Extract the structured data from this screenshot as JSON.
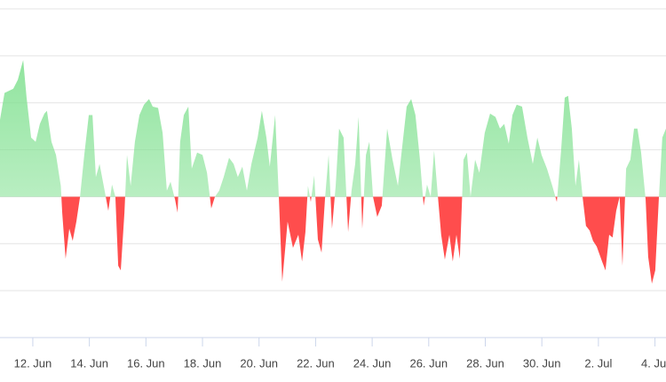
{
  "chart_data": {
    "type": "area",
    "positive_color": "#7fe08f",
    "negative_color": "#ff4d4d",
    "xlim": [
      10.84,
      34.39
    ],
    "ylim": [
      -30,
      41.9
    ],
    "xticks": [
      {
        "value": 12,
        "label": "12. Jun"
      },
      {
        "value": 14,
        "label": "14. Jun"
      },
      {
        "value": 16,
        "label": "16. Jun"
      },
      {
        "value": 18,
        "label": "18. Jun"
      },
      {
        "value": 20,
        "label": "20. Jun"
      },
      {
        "value": 22,
        "label": "22. Jun"
      },
      {
        "value": 24,
        "label": "24. Jun"
      },
      {
        "value": 26,
        "label": "26. Jun"
      },
      {
        "value": 28,
        "label": "28. Jun"
      },
      {
        "value": 30,
        "label": "30. Jun"
      },
      {
        "value": 32,
        "label": "2. Jul"
      },
      {
        "value": 34,
        "label": "4. Jul"
      }
    ],
    "yticks": [
      -20,
      -10,
      0,
      10,
      20,
      30,
      40
    ],
    "grid": true,
    "x": [
      10.84,
      11.0,
      11.31,
      11.47,
      11.66,
      11.78,
      11.94,
      12.1,
      12.25,
      12.41,
      12.5,
      12.66,
      12.82,
      12.99,
      13.04,
      13.16,
      13.29,
      13.41,
      13.54,
      13.67,
      13.82,
      13.98,
      14.11,
      14.23,
      14.36,
      14.54,
      14.67,
      14.8,
      14.92,
      15.02,
      15.11,
      15.24,
      15.33,
      15.46,
      15.61,
      15.77,
      15.93,
      16.11,
      16.24,
      16.43,
      16.59,
      16.74,
      16.87,
      17.03,
      17.12,
      17.21,
      17.34,
      17.5,
      17.62,
      17.81,
      18.0,
      18.16,
      18.31,
      18.44,
      18.59,
      18.75,
      18.94,
      19.1,
      19.25,
      19.41,
      19.57,
      19.73,
      19.95,
      20.1,
      20.26,
      20.38,
      20.57,
      20.7,
      20.82,
      21.01,
      21.2,
      21.39,
      21.52,
      21.64,
      21.73,
      21.83,
      21.95,
      22.08,
      22.21,
      22.33,
      22.46,
      22.58,
      22.71,
      22.83,
      22.99,
      23.15,
      23.27,
      23.4,
      23.52,
      23.65,
      23.78,
      23.9,
      24.03,
      24.18,
      24.34,
      24.53,
      24.72,
      24.91,
      25.03,
      25.22,
      25.38,
      25.53,
      25.69,
      25.82,
      25.94,
      26.07,
      26.19,
      26.32,
      26.44,
      26.57,
      26.73,
      26.85,
      26.98,
      27.1,
      27.23,
      27.35,
      27.48,
      27.64,
      27.79,
      27.98,
      28.17,
      28.36,
      28.52,
      28.67,
      28.83,
      28.96,
      29.11,
      29.3,
      29.49,
      29.68,
      29.84,
      29.99,
      30.18,
      30.37,
      30.53,
      30.68,
      30.81,
      30.93,
      31.06,
      31.19,
      31.31,
      31.44,
      31.56,
      31.69,
      31.81,
      31.94,
      32.13,
      32.25,
      32.38,
      32.5,
      32.63,
      32.75,
      32.85,
      32.98,
      33.13,
      33.26,
      33.38,
      33.51,
      33.67,
      33.76,
      33.89,
      34.01,
      34.14,
      34.26,
      34.39
    ],
    "values": [
      16.4,
      22.1,
      23.0,
      24.9,
      29.1,
      21.1,
      12.6,
      11.7,
      15.5,
      17.7,
      18.3,
      11.7,
      8.9,
      2.3,
      -3.4,
      -13.2,
      -6.8,
      -9.4,
      -5.3,
      0,
      8.9,
      17.4,
      17.4,
      4.2,
      7.0,
      1.3,
      -3.0,
      2.6,
      0,
      -14.7,
      -15.7,
      -3.4,
      8.9,
      2.3,
      11.7,
      17.4,
      19.6,
      20.8,
      19.2,
      18.9,
      13.6,
      1.3,
      3.2,
      -0.6,
      -3.4,
      11.7,
      17.4,
      19.2,
      6.0,
      9.4,
      8.9,
      5.1,
      -2.5,
      0,
      1.3,
      4.2,
      8.3,
      7.0,
      4.2,
      6.4,
      1.3,
      7.0,
      12.6,
      18.3,
      12.6,
      6.4,
      17.4,
      0,
      -18.1,
      -5.3,
      -10.9,
      -8.1,
      -13.8,
      -7.5,
      2.3,
      -1.1,
      4.5,
      -9.1,
      -11.9,
      -0.6,
      8.9,
      -6.8,
      2.3,
      14.5,
      12.6,
      -7.5,
      1.3,
      7.0,
      17.0,
      -6.8,
      8.9,
      11.7,
      0,
      -4.3,
      -1.9,
      14.5,
      7.9,
      2.3,
      8.9,
      19.2,
      20.8,
      17.4,
      7.9,
      -1.9,
      2.6,
      0,
      9.8,
      0.4,
      -8.1,
      -13.4,
      -8.1,
      -13.8,
      -8.1,
      -13.2,
      7.9,
      9.4,
      0,
      7.9,
      5.1,
      13.6,
      17.7,
      17.0,
      14.5,
      15.5,
      11.3,
      17.4,
      19.6,
      19.2,
      12.6,
      7.0,
      12.6,
      8.9,
      6.0,
      2.3,
      -1.1,
      9.8,
      21.1,
      21.5,
      14.5,
      2.3,
      7.9,
      0,
      -6.2,
      -7.2,
      -9.4,
      -10.6,
      -13.8,
      -15.7,
      -8.1,
      -8.7,
      -3.0,
      0,
      -14.7,
      6.0,
      7.9,
      14.5,
      14.5,
      9.4,
      -0.6,
      -12.8,
      -18.5,
      -15.7,
      0,
      12.6,
      14.5
    ]
  }
}
